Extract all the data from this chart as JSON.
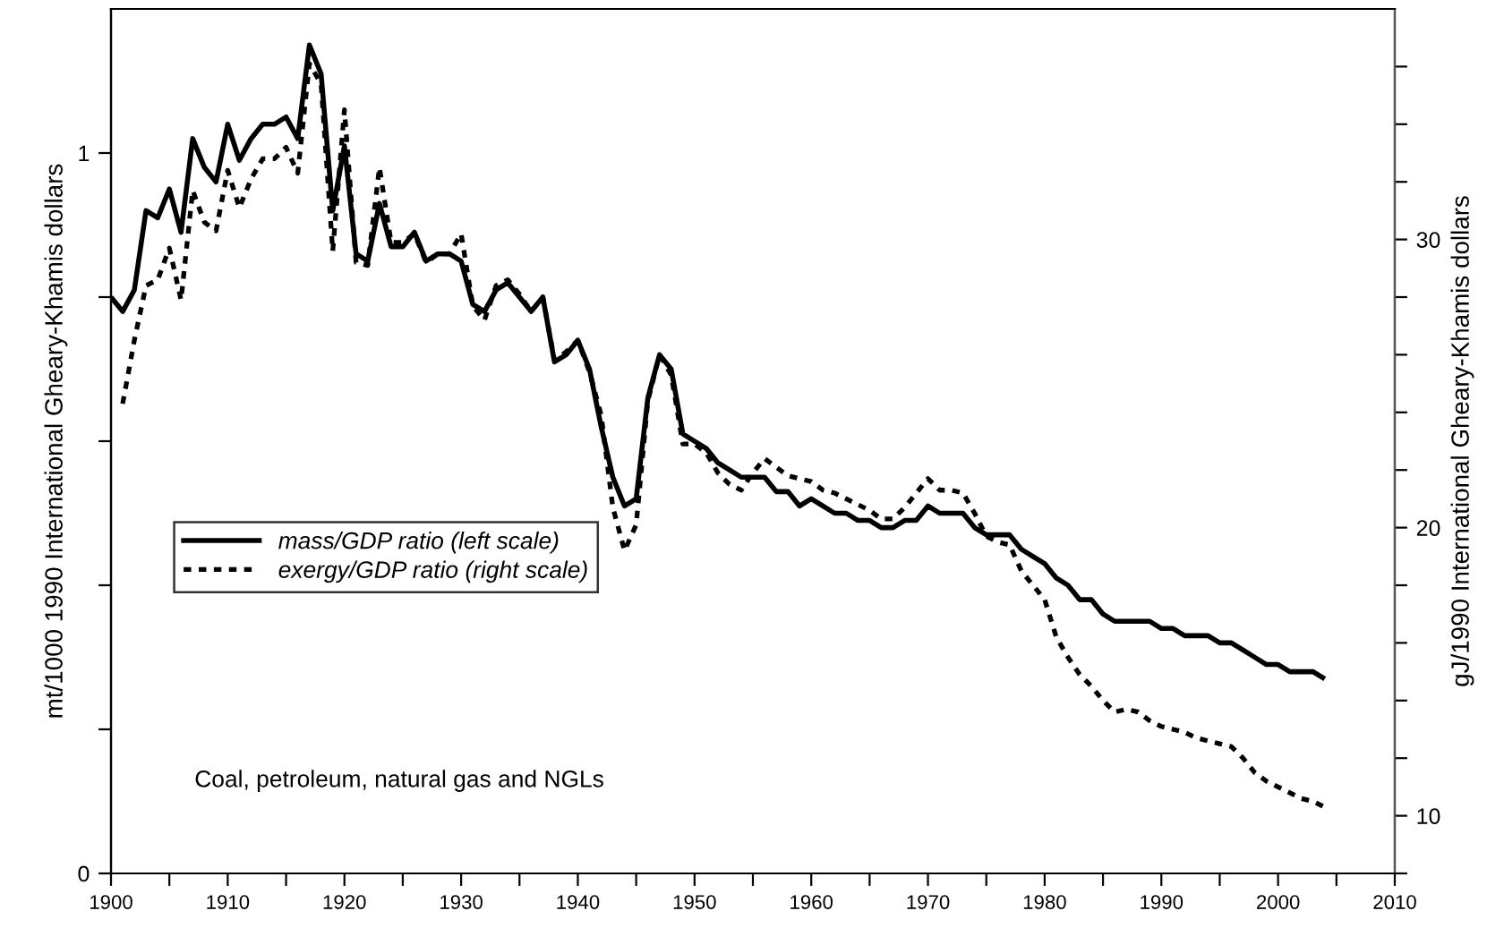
{
  "chart_data": {
    "type": "line",
    "xlabel": null,
    "ylabel": "mt/1000 1990 International Gheary-Khamis dollars",
    "y2label": "gJ/1990 International Gheary-Khamis dollars",
    "x": [
      1900,
      1901,
      1902,
      1903,
      1904,
      1905,
      1906,
      1907,
      1908,
      1909,
      1910,
      1911,
      1912,
      1913,
      1914,
      1915,
      1916,
      1917,
      1918,
      1919,
      1920,
      1921,
      1922,
      1923,
      1924,
      1925,
      1926,
      1927,
      1928,
      1929,
      1930,
      1931,
      1932,
      1933,
      1934,
      1935,
      1936,
      1937,
      1938,
      1939,
      1940,
      1941,
      1942,
      1943,
      1944,
      1945,
      1946,
      1947,
      1948,
      1949,
      1950,
      1951,
      1952,
      1953,
      1954,
      1955,
      1956,
      1957,
      1958,
      1959,
      1960,
      1961,
      1962,
      1963,
      1964,
      1965,
      1966,
      1967,
      1968,
      1969,
      1970,
      1971,
      1972,
      1973,
      1974,
      1975,
      1976,
      1977,
      1978,
      1979,
      1980,
      1981,
      1982,
      1983,
      1984,
      1985,
      1986,
      1987,
      1988,
      1989,
      1990,
      1991,
      1992,
      1993,
      1994,
      1995,
      1996,
      1997,
      1998,
      1999,
      2000,
      2001,
      2002,
      2003,
      2004
    ],
    "series": [
      {
        "name": "mass/GDP ratio (left scale)",
        "color": "#000000",
        "line_style": "solid",
        "values": [
          0.8,
          0.78,
          0.81,
          0.92,
          0.91,
          0.95,
          0.89,
          1.02,
          0.98,
          0.96,
          1.04,
          0.99,
          1.02,
          1.04,
          1.04,
          1.05,
          1.02,
          1.15,
          1.11,
          0.92,
          1.01,
          0.86,
          0.85,
          0.93,
          0.87,
          0.87,
          0.89,
          0.85,
          0.86,
          0.86,
          0.85,
          0.79,
          0.78,
          0.81,
          0.82,
          0.8,
          0.78,
          0.8,
          0.71,
          0.72,
          0.74,
          0.7,
          0.62,
          0.55,
          0.51,
          0.52,
          0.66,
          0.72,
          0.7,
          0.61,
          0.6,
          0.59,
          0.57,
          0.56,
          0.55,
          0.55,
          0.55,
          0.53,
          0.53,
          0.51,
          0.52,
          0.51,
          0.5,
          0.5,
          0.49,
          0.49,
          0.48,
          0.48,
          0.49,
          0.49,
          0.51,
          0.5,
          0.5,
          0.5,
          0.48,
          0.47,
          0.47,
          0.47,
          0.45,
          0.44,
          0.43,
          0.41,
          0.4,
          0.38,
          0.38,
          0.36,
          0.35,
          0.35,
          0.35,
          0.35,
          0.34,
          0.34,
          0.33,
          0.33,
          0.33,
          0.32,
          0.32,
          0.31,
          0.3,
          0.29,
          0.29,
          0.28,
          0.28,
          0.28,
          0.27
        ]
      },
      {
        "name": "exergy/GDP ratio (right scale)",
        "color": "#000000",
        "line_style": "dotted",
        "axis": "y2",
        "values": [
          null,
          24.3,
          26.5,
          28.4,
          28.6,
          29.7,
          27.9,
          31.7,
          30.6,
          30.3,
          32.4,
          31.1,
          32.1,
          32.8,
          32.8,
          33.2,
          32.3,
          36.1,
          35.4,
          29.6,
          34.5,
          29.2,
          29.1,
          32.5,
          29.9,
          29.9,
          30.2,
          29.2,
          29.5,
          29.5,
          30.2,
          27.7,
          27.2,
          28.4,
          28.6,
          28.1,
          27.5,
          28.0,
          25.8,
          26.1,
          26.5,
          25.4,
          23.9,
          20.7,
          19.2,
          20.1,
          24.4,
          26.0,
          25.3,
          22.9,
          22.9,
          22.6,
          21.9,
          21.5,
          21.3,
          21.9,
          22.4,
          22.1,
          21.8,
          21.7,
          21.6,
          21.3,
          21.2,
          21.0,
          20.8,
          20.6,
          20.3,
          20.3,
          20.7,
          21.2,
          21.7,
          21.3,
          21.3,
          21.2,
          20.5,
          19.7,
          19.5,
          19.4,
          18.5,
          18.0,
          17.5,
          16.2,
          15.5,
          14.9,
          14.5,
          14.0,
          13.6,
          13.7,
          13.6,
          13.3,
          13.1,
          13.0,
          12.9,
          12.7,
          12.6,
          12.5,
          12.4,
          12.0,
          11.5,
          11.2,
          11.0,
          10.8,
          10.6,
          10.5,
          10.3
        ]
      }
    ],
    "xlim": [
      1900,
      2010
    ],
    "xticks": [
      1900,
      {
        "value": 1905,
        "label": null
      },
      1910,
      {
        "value": 1915,
        "label": null
      },
      1920,
      {
        "value": 1925,
        "label": null
      },
      1930,
      {
        "value": 1935,
        "label": null
      },
      1940,
      {
        "value": 1945,
        "label": null
      },
      1950,
      {
        "value": 1955,
        "label": null
      },
      1960,
      {
        "value": 1965,
        "label": null
      },
      1970,
      {
        "value": 1975,
        "label": null
      },
      1980,
      {
        "value": 1985,
        "label": null
      },
      1990,
      {
        "value": 1995,
        "label": null
      },
      2000,
      {
        "value": 2005,
        "label": null
      },
      2010
    ],
    "ylim": [
      0,
      1.2
    ],
    "yticks": [
      0,
      {
        "value": 0.2,
        "label": null
      },
      {
        "value": 0.4,
        "label": null
      },
      {
        "value": 0.6,
        "label": null
      },
      {
        "value": 0.8,
        "label": null
      },
      1
    ],
    "y2lim": [
      8,
      38
    ],
    "y2ticks": [
      {
        "value": 8,
        "label": null
      },
      10,
      {
        "value": 12,
        "label": null
      },
      {
        "value": 14,
        "label": null
      },
      {
        "value": 16,
        "label": null
      },
      {
        "value": 18,
        "label": null
      },
      20,
      {
        "value": 22,
        "label": null
      },
      {
        "value": 24,
        "label": null
      },
      {
        "value": 26,
        "label": null
      },
      {
        "value": 28,
        "label": null
      },
      30,
      {
        "value": 32,
        "label": null
      },
      {
        "value": 34,
        "label": null
      },
      {
        "value": 36,
        "label": null
      }
    ],
    "annotations": [
      "Coal, petroleum, natural gas and NGLs"
    ],
    "legend": "left",
    "grid": false,
    "marker": "none"
  }
}
